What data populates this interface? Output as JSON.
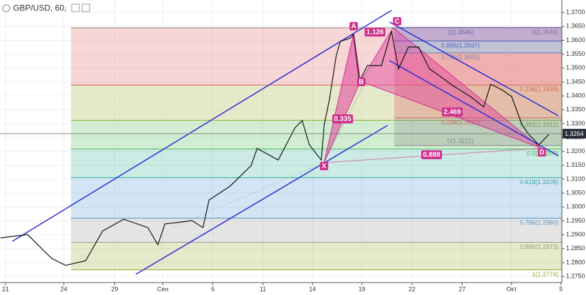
{
  "chart_data": {
    "type": "line",
    "title": "GBP/USD, 60,",
    "xlim": [
      -0.55,
      55.5
    ],
    "ylim": [
      1.2728,
      1.3745
    ],
    "xticks": [
      {
        "value": 0,
        "label": "21"
      },
      {
        "value": 5.82,
        "label": "24"
      },
      {
        "value": 10.89,
        "label": "29"
      },
      {
        "value": 15.68,
        "label": "Сен"
      },
      {
        "value": 20.68,
        "label": "6"
      },
      {
        "value": 25.68,
        "label": "11"
      },
      {
        "value": 30.62,
        "label": "14"
      },
      {
        "value": 35.55,
        "label": "19"
      },
      {
        "value": 40.55,
        "label": "22"
      },
      {
        "value": 45.55,
        "label": "27"
      },
      {
        "value": 50.48,
        "label": "Окт"
      },
      {
        "value": 55.41,
        "label": "5"
      }
    ],
    "yticks": [
      {
        "value": 1.275,
        "label": "1.2750"
      },
      {
        "value": 1.28,
        "label": "1.2800"
      },
      {
        "value": 1.285,
        "label": "1.2850"
      },
      {
        "value": 1.29,
        "label": "1.2900"
      },
      {
        "value": 1.295,
        "label": "1.2950"
      },
      {
        "value": 1.3,
        "label": "1.3000"
      },
      {
        "value": 1.305,
        "label": "1.3050"
      },
      {
        "value": 1.31,
        "label": "1.3100"
      },
      {
        "value": 1.315,
        "label": "1.3150"
      },
      {
        "value": 1.32,
        "label": "1.3200"
      },
      {
        "value": 1.325,
        "label": "1.3250"
      },
      {
        "value": 1.33,
        "label": "1.3300"
      },
      {
        "value": 1.335,
        "label": "1.3350"
      },
      {
        "value": 1.34,
        "label": "1.3400"
      },
      {
        "value": 1.345,
        "label": "1.3450"
      },
      {
        "value": 1.35,
        "label": "1.3500"
      },
      {
        "value": 1.355,
        "label": "1.3550"
      },
      {
        "value": 1.36,
        "label": "1.3600"
      },
      {
        "value": 1.365,
        "label": "1.3650"
      },
      {
        "value": 1.37,
        "label": "1.3700"
      }
    ],
    "grid": true,
    "last_price": 1.3264,
    "series": [
      {
        "color": "#111111",
        "x": [
          -0.5,
          2.2,
          4.6,
          6.0,
          8.0,
          9.7,
          11.8,
          14.2,
          15.2,
          15.9,
          18.6,
          19.7,
          20.3,
          22.4,
          24.5,
          25.1,
          27.2,
          28.9,
          29.6,
          30.3,
          31.5,
          31.8,
          32.3,
          33.0,
          33.4,
          34.4,
          34.7,
          35.3,
          36.1,
          37.5,
          38.5,
          39.2,
          40.2,
          41.2,
          42.3,
          43.3,
          44.7,
          46.4,
          47.7,
          48.4,
          49.5,
          50.5,
          51.5,
          52.2,
          53.2,
          54.2
        ],
        "values": [
          1.2889,
          1.2901,
          1.2815,
          1.279,
          1.2807,
          1.2914,
          1.2956,
          1.2926,
          1.2864,
          1.2939,
          1.2951,
          1.2926,
          1.3025,
          1.3075,
          1.3149,
          1.3211,
          1.3169,
          1.3286,
          1.3311,
          1.3224,
          1.3169,
          1.3298,
          1.3385,
          1.3546,
          1.3596,
          1.3608,
          1.3621,
          1.3452,
          1.3509,
          1.3509,
          1.3633,
          1.3497,
          1.3576,
          1.3576,
          1.3497,
          1.3472,
          1.3435,
          1.3397,
          1.336,
          1.3442,
          1.3422,
          1.3397,
          1.3298,
          1.3261,
          1.3224,
          1.3261
        ]
      }
    ],
    "fib_retracement": [
      {
        "value": 1.3645,
        "label": "0(1.3645)",
        "color": "#888888"
      },
      {
        "value": 1.3439,
        "label": "0.236(1.3439)",
        "color": "#e05a5a"
      },
      {
        "value": 1.3312,
        "label": "0.382(1.3312)",
        "color": "#9aab2e"
      },
      {
        "value": 1.3209,
        "label": "0.5(1.3209)",
        "color": "#4cbb4c"
      },
      {
        "value": 1.3106,
        "label": "0.618(1.3106)",
        "color": "#2fae94"
      },
      {
        "value": 1.296,
        "label": "0.786(1.2960)",
        "color": "#4a96d2"
      },
      {
        "value": 1.2873,
        "label": "0.886(1.2873)",
        "color": "#999999"
      },
      {
        "value": 1.2774,
        "label": "1(1.2774)",
        "color": "#9aab2e"
      }
    ],
    "fib_cd": [
      {
        "value": 1.3646,
        "label": "1(1.3646)",
        "color": "#7373a8"
      },
      {
        "value": 1.3597,
        "label": "0.886(1.3597)",
        "color": "#4f4fc0"
      },
      {
        "value": 1.3555,
        "label": "0.786(1.3555)",
        "color": "#4a96d2"
      },
      {
        "value": 1.3321,
        "label": "0.236(1.3321)",
        "color": "#e05a5a"
      },
      {
        "value": 1.3221,
        "label": "0(1.3221)",
        "color": "#888888"
      }
    ],
    "pattern_points": [
      "X",
      "A",
      "B",
      "C",
      "D"
    ],
    "pattern_ratios": [
      1.126,
      0.335,
      2.469,
      0.888
    ]
  }
}
